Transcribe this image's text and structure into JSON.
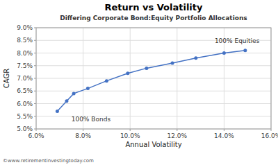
{
  "chart_data": {
    "type": "line",
    "title": "Return vs Volatility",
    "subtitle": "Differing Corporate Bond:Equity Portfolio Allocations",
    "x_label": "Annual Volatility",
    "y_label": "CAGR",
    "watermark": "©www.retirementinvestingtoday.com",
    "x": [
      0.069,
      0.073,
      0.076,
      0.082,
      0.09,
      0.099,
      0.107,
      0.118,
      0.128,
      0.14,
      0.149
    ],
    "values": [
      0.057,
      0.061,
      0.064,
      0.066,
      0.069,
      0.072,
      0.074,
      0.076,
      0.078,
      0.08,
      0.081
    ],
    "color": "#4472C4",
    "marker": "circle",
    "grid": true,
    "xlim": [
      0.06,
      0.16
    ],
    "ylim": [
      0.05,
      0.09
    ],
    "xticks": [
      {
        "value": 0.06,
        "label": "6.0%"
      },
      {
        "value": 0.08,
        "label": "8.0%"
      },
      {
        "value": 0.1,
        "label": "10.0%"
      },
      {
        "value": 0.12,
        "label": "12.0%"
      },
      {
        "value": 0.14,
        "label": "14.0%"
      },
      {
        "value": 0.16,
        "label": "16.0%"
      }
    ],
    "yticks": [
      {
        "value": 0.05,
        "label": "5.0%"
      },
      {
        "value": 0.055,
        "label": "5.5%"
      },
      {
        "value": 0.06,
        "label": "6.0%"
      },
      {
        "value": 0.065,
        "label": "6.5%"
      },
      {
        "value": 0.07,
        "label": "7.0%"
      },
      {
        "value": 0.075,
        "label": "7.5%"
      },
      {
        "value": 0.08,
        "label": "8.0%"
      },
      {
        "value": 0.085,
        "label": "8.5%"
      },
      {
        "value": 0.09,
        "label": "9.0%"
      }
    ],
    "annotations": [
      {
        "text": "100% Bonds",
        "x": 0.075,
        "y": 0.0555
      },
      {
        "text": "100% Equities",
        "x": 0.136,
        "y": 0.0835
      }
    ]
  }
}
